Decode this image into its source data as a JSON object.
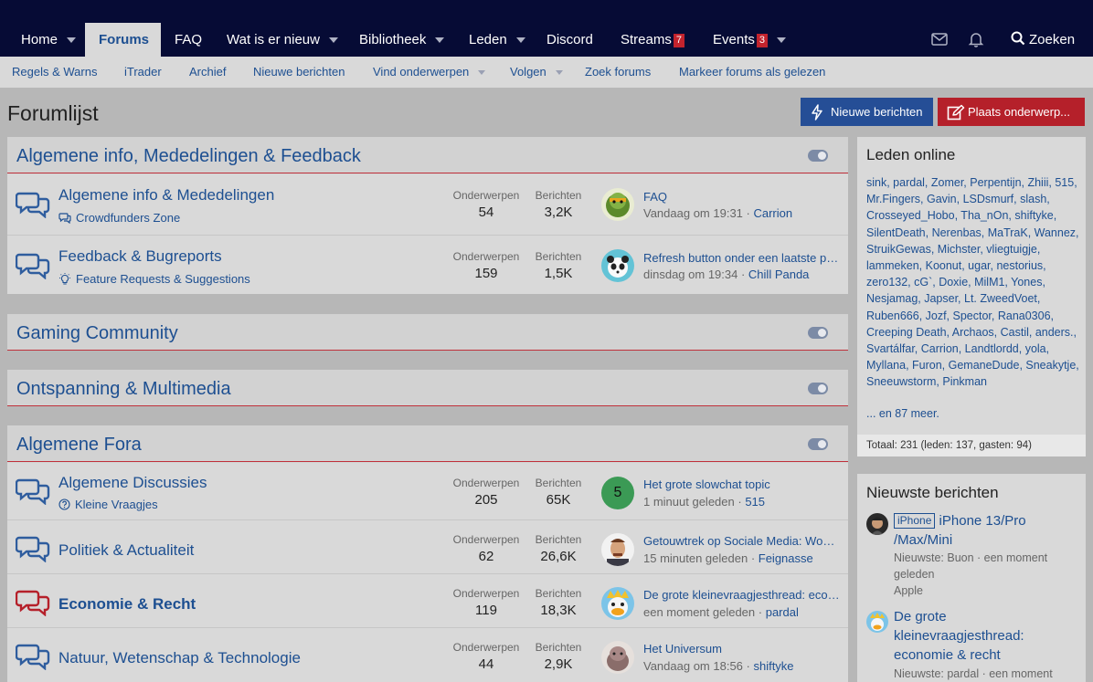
{
  "nav": {
    "items": [
      {
        "label": "Home"
      },
      {
        "label": "Forums"
      },
      {
        "label": "FAQ"
      },
      {
        "label": "Wat is er nieuw"
      },
      {
        "label": "Bibliotheek"
      },
      {
        "label": "Leden"
      },
      {
        "label": "Discord"
      },
      {
        "label": "Streams",
        "badge": "7"
      },
      {
        "label": "Events",
        "badge": "3"
      }
    ],
    "search_label": "Zoeken"
  },
  "subnav": {
    "items": [
      {
        "label": "Regels & Warns"
      },
      {
        "label": "iTrader"
      },
      {
        "label": "Archief"
      },
      {
        "label": "Nieuwe berichten"
      },
      {
        "label": "Vind onderwerpen"
      },
      {
        "label": "Volgen"
      },
      {
        "label": "Zoek forums"
      },
      {
        "label": "Markeer forums als gelezen"
      }
    ]
  },
  "page": {
    "title": "Forumlijst",
    "new_posts_button": "Nieuwe berichten",
    "post_thread_button": "Plaats onderwerp..."
  },
  "labels": {
    "threads": "Onderwerpen",
    "messages": "Berichten"
  },
  "categories": [
    {
      "title": "Algemene info, Mededelingen & Feedback",
      "nodes": [
        {
          "title": "Algemene info & Mededelingen",
          "sub": "Crowdfunders Zone",
          "threads": "54",
          "messages": "3,2K",
          "last_title": "FAQ",
          "last_date": "Vandaag om 19:31",
          "last_user": "Carrion"
        },
        {
          "title": "Feedback & Bugreports",
          "sub": "Feature Requests & Suggestions",
          "threads": "159",
          "messages": "1,5K",
          "last_title": "Refresh button onder een laatste pagina zou handig zijn",
          "last_date": "dinsdag om 19:34",
          "last_user": "Chill Panda"
        }
      ]
    },
    {
      "title": "Gaming Community"
    },
    {
      "title": "Ontspanning & Multimedia"
    },
    {
      "title": "Algemene Fora",
      "nodes": [
        {
          "title": "Algemene Discussies",
          "sub": "Kleine Vraagjes",
          "threads": "205",
          "messages": "65K",
          "last_title": "Het grote slowchat topic",
          "last_date": "1 minuut geleden",
          "last_user": "515",
          "avatar_letter": "5"
        },
        {
          "title": "Politiek & Actualiteit",
          "threads": "62",
          "messages": "26,6K",
          "last_title": "Getouwtrek op Sociale Media: Woke vs. Anti-woke",
          "last_date": "15 minuten geleden",
          "last_user": "Feignasse"
        },
        {
          "title": "Economie & Recht",
          "threads": "119",
          "messages": "18,3K",
          "last_title": "De grote kleinevraagjesthread: economie & recht",
          "last_date": "een moment geleden",
          "last_user": "pardal"
        },
        {
          "title": "Natuur, Wetenschap & Technologie",
          "threads": "44",
          "messages": "2,9K",
          "last_title": "Het Universum",
          "last_date": "Vandaag om 18:56",
          "last_user": "shiftyke"
        }
      ]
    }
  ],
  "sidebar": {
    "online": {
      "title": "Leden online",
      "members": "sink, pardal, Zomer, Perpentijn, Zhiii, 515, Mr.Fingers, Gavin, LSDsmurf, slash, Crosseyed_Hobo, Tha_nOn, shiftyke, SilentDeath, Nerenbas, MaTraK, Wannez, StruikGewas, Michster, vliegtuigje, lammeken, Koonut, ugar, nestorius, zero132, cG`, Doxie, MilM1, Yones, Nesjamag, Japser, Lt. ZweedVoet, Ruben666, Jozf, Spector, Rana0306, Creeping Death, Archaos, Castil, anders., Svartálfar, Carrion, Landtlordd, yola, Myllana, Furon, GemaneDude, Sneakytje, Sneeuwstorm, Pinkman",
      "more": "... en 87 meer.",
      "total": "Totaal: 231 (leden: 137, gasten: 94)"
    },
    "latest": {
      "title": "Nieuwste berichten",
      "posts": [
        {
          "prefix": "iPhone",
          "title": "iPhone 13/Pro /Max/Mini",
          "meta": "Nieuwste: Buon · een moment geleden",
          "forum": "Apple"
        },
        {
          "title": "De grote kleinevraagjesthread: economie & recht",
          "meta": "Nieuwste: pardal · een moment"
        }
      ]
    }
  }
}
